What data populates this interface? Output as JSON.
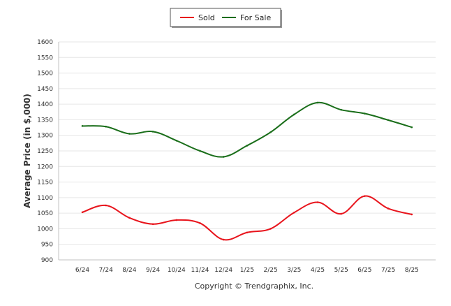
{
  "chart_data": {
    "type": "line",
    "ylabel": "Average Price (in $,000)",
    "xlabel": "",
    "categories": [
      "6/24",
      "7/24",
      "8/24",
      "9/24",
      "10/24",
      "11/24",
      "12/24",
      "1/25",
      "2/25",
      "3/25",
      "4/25",
      "5/25",
      "6/25",
      "7/25",
      "8/25"
    ],
    "ylim": [
      900,
      1600
    ],
    "yticks": [
      900,
      950,
      1000,
      1050,
      1100,
      1150,
      1200,
      1250,
      1300,
      1350,
      1400,
      1450,
      1500,
      1550,
      1600
    ],
    "grid": true,
    "legend": "top-center",
    "series": [
      {
        "name": "Sold",
        "color": "#e8141c",
        "values": [
          1053,
          1075,
          1035,
          1015,
          1028,
          1018,
          965,
          988,
          1000,
          1052,
          1085,
          1048,
          1105,
          1065,
          1046
        ]
      },
      {
        "name": "For Sale",
        "color": "#1a6e1a",
        "values": [
          1330,
          1328,
          1305,
          1312,
          1283,
          1250,
          1231,
          1267,
          1310,
          1367,
          1405,
          1382,
          1370,
          1349,
          1326
        ]
      }
    ],
    "credit": "Copyright © Trendgraphix, Inc."
  }
}
